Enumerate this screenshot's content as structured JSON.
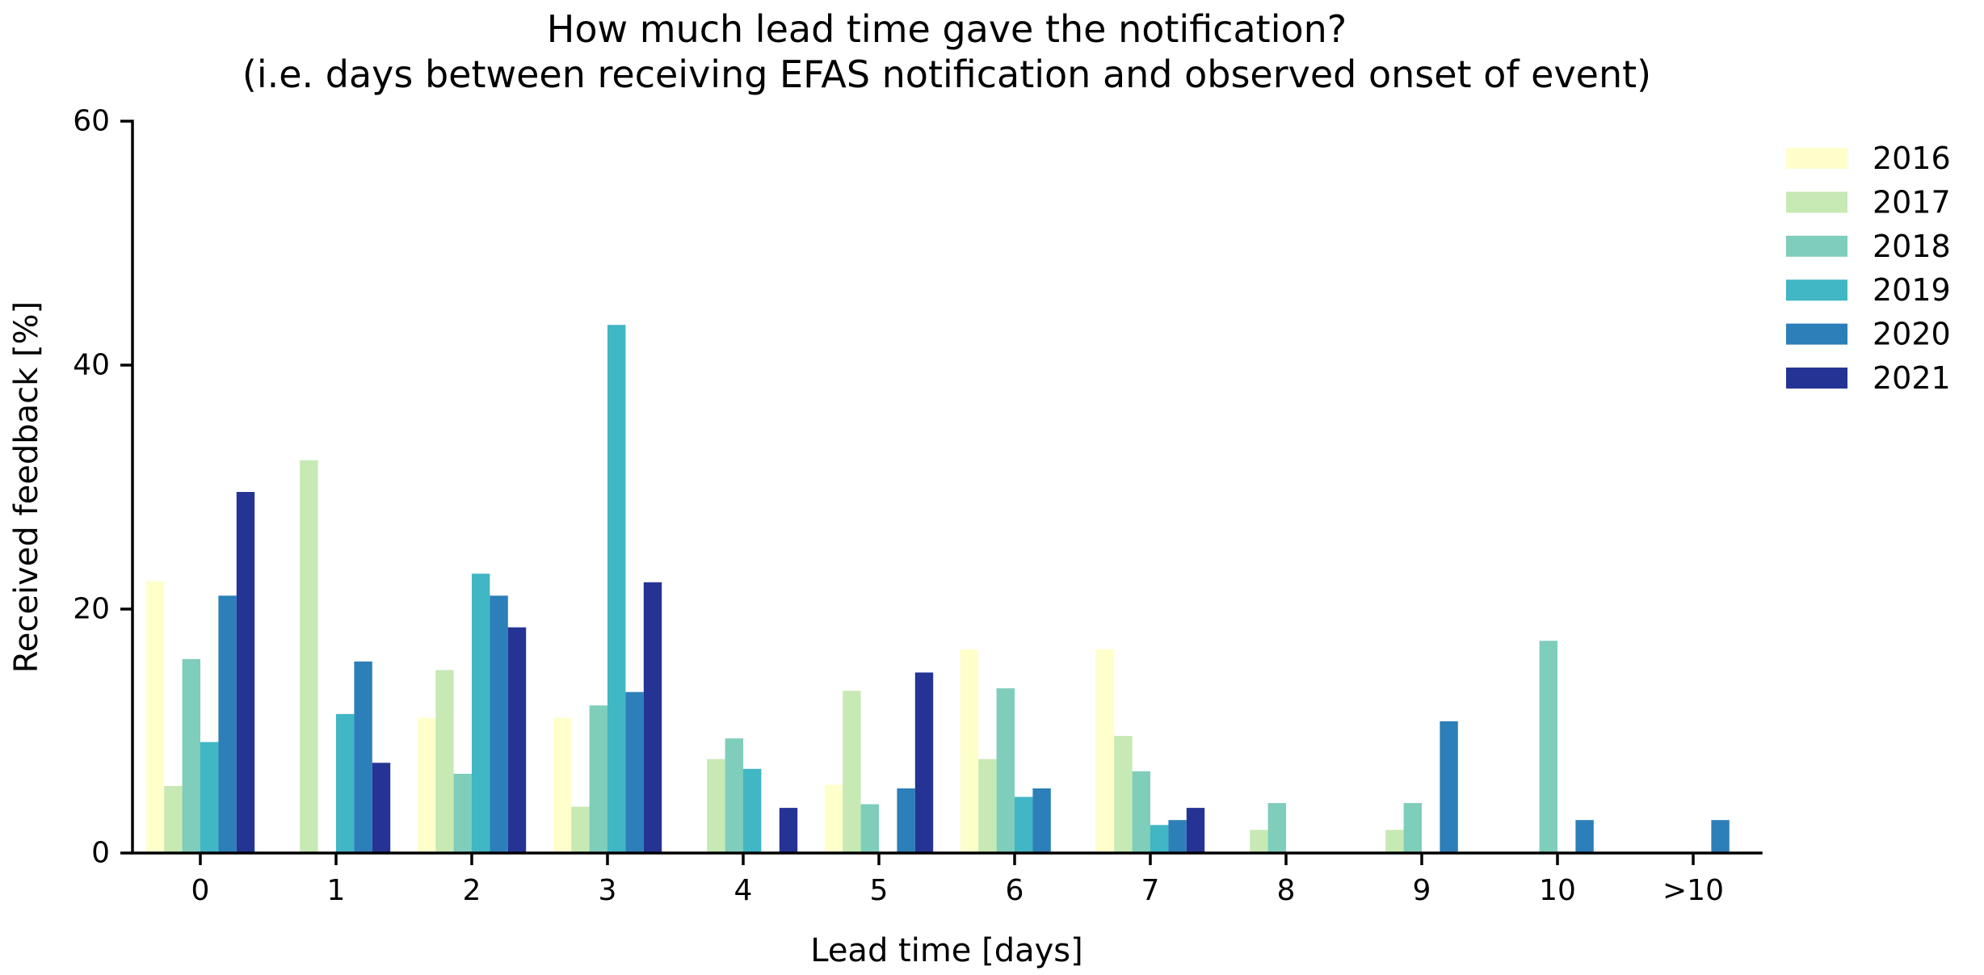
{
  "chart_data": {
    "type": "bar",
    "title": "How much lead time gave the notification?",
    "subtitle": "(i.e. days between receiving EFAS notification and observed onset of event)",
    "xlabel": "Lead time [days]",
    "ylabel": "Received feedback [%]",
    "ylim": [
      0,
      60
    ],
    "yticks": [
      0,
      20,
      40,
      60
    ],
    "grid": false,
    "legend_position": "upper-right outside plot, no frame",
    "categories": [
      "0",
      "1",
      "2",
      "3",
      "4",
      "5",
      "6",
      "7",
      "8",
      "9",
      "10",
      ">10"
    ],
    "series": [
      {
        "name": "2016",
        "color": "#ffffcc",
        "values": [
          22.3,
          0,
          11.1,
          11.1,
          0,
          5.6,
          16.7,
          16.7,
          0,
          0,
          0,
          0
        ]
      },
      {
        "name": "2017",
        "color": "#c7e9b4",
        "values": [
          5.5,
          32.2,
          15.0,
          3.8,
          7.7,
          13.3,
          7.7,
          9.6,
          1.9,
          1.9,
          0,
          0
        ]
      },
      {
        "name": "2018",
        "color": "#7fcdbb",
        "values": [
          15.9,
          0,
          6.5,
          12.1,
          9.4,
          4.0,
          13.5,
          6.7,
          4.1,
          4.1,
          17.4,
          0
        ]
      },
      {
        "name": "2019",
        "color": "#41b6c4",
        "values": [
          9.1,
          11.4,
          22.9,
          43.3,
          6.9,
          0,
          4.6,
          2.3,
          0,
          0,
          0,
          0
        ]
      },
      {
        "name": "2020",
        "color": "#2c7fb8",
        "values": [
          21.1,
          15.7,
          21.1,
          13.2,
          0,
          5.3,
          5.3,
          2.7,
          0,
          10.8,
          2.7,
          2.7
        ]
      },
      {
        "name": "2021",
        "color": "#253494",
        "values": [
          29.6,
          7.4,
          18.5,
          22.2,
          3.7,
          14.8,
          0,
          3.7,
          0,
          0,
          0,
          0
        ]
      }
    ]
  }
}
